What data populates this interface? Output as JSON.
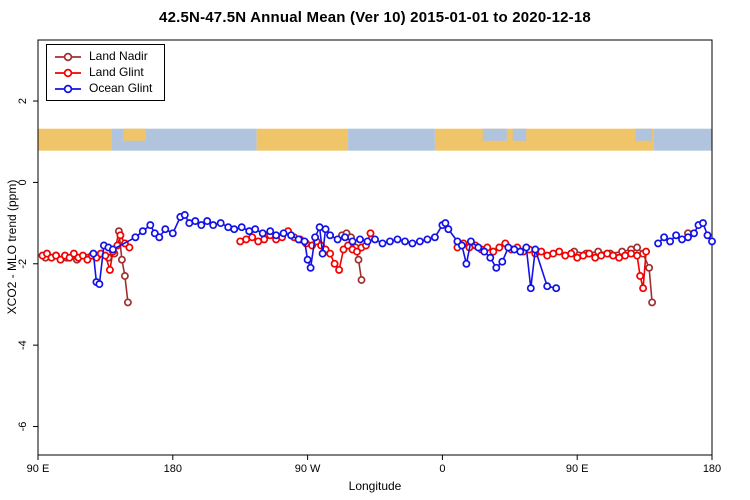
{
  "chart_data": {
    "type": "line",
    "title": "42.5N-47.5N Annual Mean (Ver 10)   2015-01-01 to 2020-12-18",
    "xlabel": "Longitude",
    "ylabel": "XCO2 - MLO trend (ppm)",
    "x_unit_note": "x is degrees along wrapped longitude axis: 0=90E, 90=180, 180=90W, 270=0, 360=90E, 450=180",
    "xlim": [
      0,
      450
    ],
    "ylim": [
      -6.7,
      3.5
    ],
    "grid": false,
    "legend_position": "top-left",
    "x_ticks": [
      {
        "pos": 0,
        "label": "90 E"
      },
      {
        "pos": 90,
        "label": "180"
      },
      {
        "pos": 180,
        "label": "90 W"
      },
      {
        "pos": 270,
        "label": "0"
      },
      {
        "pos": 360,
        "label": "90 E"
      },
      {
        "pos": 450,
        "label": "180"
      }
    ],
    "y_ticks": [
      {
        "pos": 2,
        "label": "2"
      },
      {
        "pos": 0,
        "label": "0"
      },
      {
        "pos": -2,
        "label": "-2"
      },
      {
        "pos": -4,
        "label": "-4"
      },
      {
        "pos": -6,
        "label": "-6"
      }
    ],
    "series": [
      {
        "name": "Land Nadir",
        "color": "#A03030",
        "points": [
          [
            5,
            -1.85
          ],
          [
            12,
            -1.8
          ],
          [
            19,
            -1.85
          ],
          [
            26,
            -1.9
          ],
          [
            33,
            -1.85
          ],
          [
            40,
            -1.8
          ],
          [
            47,
            -1.85
          ],
          [
            51,
            -1.75
          ],
          [
            54,
            -1.2
          ],
          [
            56,
            -1.9
          ],
          [
            58,
            -2.3
          ],
          [
            60,
            -2.95
          ],
          [
            203,
            -1.3
          ],
          [
            206,
            -1.25
          ],
          [
            209,
            -1.35
          ],
          [
            212,
            -1.6
          ],
          [
            214,
            -1.9
          ],
          [
            216,
            -2.4
          ],
          [
            358,
            -1.7
          ],
          [
            366,
            -1.75
          ],
          [
            374,
            -1.7
          ],
          [
            382,
            -1.75
          ],
          [
            390,
            -1.7
          ],
          [
            396,
            -1.65
          ],
          [
            400,
            -1.6
          ],
          [
            404,
            -1.75
          ],
          [
            408,
            -2.1
          ],
          [
            410,
            -2.95
          ],
          [
            434,
            -1.25
          ]
        ]
      },
      {
        "name": "Land Glint",
        "color": "#F40000",
        "points": [
          [
            3,
            -1.8
          ],
          [
            6,
            -1.75
          ],
          [
            9,
            -1.85
          ],
          [
            12,
            -1.8
          ],
          [
            15,
            -1.9
          ],
          [
            18,
            -1.8
          ],
          [
            21,
            -1.85
          ],
          [
            24,
            -1.75
          ],
          [
            27,
            -1.85
          ],
          [
            30,
            -1.8
          ],
          [
            33,
            -1.9
          ],
          [
            36,
            -1.8
          ],
          [
            39,
            -1.85
          ],
          [
            42,
            -1.75
          ],
          [
            45,
            -1.8
          ],
          [
            48,
            -2.15
          ],
          [
            50,
            -1.7
          ],
          [
            53,
            -1.55
          ],
          [
            55,
            -1.3
          ],
          [
            58,
            -1.5
          ],
          [
            61,
            -1.6
          ],
          [
            135,
            -1.45
          ],
          [
            139,
            -1.4
          ],
          [
            143,
            -1.35
          ],
          [
            147,
            -1.45
          ],
          [
            151,
            -1.4
          ],
          [
            155,
            -1.3
          ],
          [
            159,
            -1.4
          ],
          [
            163,
            -1.35
          ],
          [
            167,
            -1.2
          ],
          [
            171,
            -1.35
          ],
          [
            175,
            -1.4
          ],
          [
            179,
            -1.5
          ],
          [
            183,
            -1.55
          ],
          [
            186,
            -1.45
          ],
          [
            189,
            -1.55
          ],
          [
            192,
            -1.65
          ],
          [
            195,
            -1.75
          ],
          [
            198,
            -2.0
          ],
          [
            201,
            -2.15
          ],
          [
            204,
            -1.65
          ],
          [
            207,
            -1.55
          ],
          [
            210,
            -1.65
          ],
          [
            213,
            -1.7
          ],
          [
            216,
            -1.6
          ],
          [
            219,
            -1.55
          ],
          [
            222,
            -1.25
          ],
          [
            280,
            -1.6
          ],
          [
            284,
            -1.5
          ],
          [
            288,
            -1.6
          ],
          [
            292,
            -1.55
          ],
          [
            296,
            -1.65
          ],
          [
            300,
            -1.6
          ],
          [
            304,
            -1.7
          ],
          [
            308,
            -1.6
          ],
          [
            312,
            -1.5
          ],
          [
            316,
            -1.65
          ],
          [
            320,
            -1.6
          ],
          [
            324,
            -1.7
          ],
          [
            328,
            -1.65
          ],
          [
            332,
            -1.75
          ],
          [
            336,
            -1.7
          ],
          [
            340,
            -1.8
          ],
          [
            344,
            -1.75
          ],
          [
            348,
            -1.7
          ],
          [
            352,
            -1.8
          ],
          [
            356,
            -1.75
          ],
          [
            360,
            -1.85
          ],
          [
            364,
            -1.8
          ],
          [
            368,
            -1.75
          ],
          [
            372,
            -1.85
          ],
          [
            376,
            -1.8
          ],
          [
            380,
            -1.75
          ],
          [
            384,
            -1.8
          ],
          [
            388,
            -1.85
          ],
          [
            392,
            -1.8
          ],
          [
            396,
            -1.75
          ],
          [
            400,
            -1.8
          ],
          [
            402,
            -2.3
          ],
          [
            404,
            -2.6
          ],
          [
            406,
            -1.7
          ]
        ]
      },
      {
        "name": "Ocean Glint",
        "color": "#1212E8",
        "points": [
          [
            37,
            -1.75
          ],
          [
            39,
            -2.45
          ],
          [
            41,
            -2.5
          ],
          [
            44,
            -1.55
          ],
          [
            47,
            -1.6
          ],
          [
            50,
            -1.65
          ],
          [
            65,
            -1.35
          ],
          [
            70,
            -1.2
          ],
          [
            75,
            -1.05
          ],
          [
            78,
            -1.25
          ],
          [
            81,
            -1.35
          ],
          [
            85,
            -1.15
          ],
          [
            90,
            -1.25
          ],
          [
            95,
            -0.85
          ],
          [
            98,
            -0.8
          ],
          [
            101,
            -1.0
          ],
          [
            105,
            -0.95
          ],
          [
            109,
            -1.05
          ],
          [
            113,
            -0.95
          ],
          [
            117,
            -1.05
          ],
          [
            122,
            -1.0
          ],
          [
            127,
            -1.1
          ],
          [
            131,
            -1.15
          ],
          [
            136,
            -1.1
          ],
          [
            141,
            -1.2
          ],
          [
            145,
            -1.15
          ],
          [
            150,
            -1.25
          ],
          [
            155,
            -1.2
          ],
          [
            159,
            -1.3
          ],
          [
            164,
            -1.25
          ],
          [
            169,
            -1.3
          ],
          [
            174,
            -1.4
          ],
          [
            178,
            -1.45
          ],
          [
            180,
            -1.9
          ],
          [
            182,
            -2.1
          ],
          [
            185,
            -1.35
          ],
          [
            188,
            -1.1
          ],
          [
            190,
            -1.75
          ],
          [
            192,
            -1.15
          ],
          [
            195,
            -1.3
          ],
          [
            200,
            -1.4
          ],
          [
            205,
            -1.35
          ],
          [
            210,
            -1.45
          ],
          [
            215,
            -1.4
          ],
          [
            220,
            -1.45
          ],
          [
            225,
            -1.4
          ],
          [
            230,
            -1.5
          ],
          [
            235,
            -1.45
          ],
          [
            240,
            -1.4
          ],
          [
            245,
            -1.45
          ],
          [
            250,
            -1.5
          ],
          [
            255,
            -1.45
          ],
          [
            260,
            -1.4
          ],
          [
            265,
            -1.35
          ],
          [
            270,
            -1.05
          ],
          [
            272,
            -1.0
          ],
          [
            274,
            -1.15
          ],
          [
            280,
            -1.45
          ],
          [
            283,
            -1.55
          ],
          [
            286,
            -2.0
          ],
          [
            289,
            -1.45
          ],
          [
            294,
            -1.6
          ],
          [
            298,
            -1.7
          ],
          [
            302,
            -1.85
          ],
          [
            306,
            -2.1
          ],
          [
            310,
            -1.95
          ],
          [
            314,
            -1.6
          ],
          [
            318,
            -1.65
          ],
          [
            322,
            -1.7
          ],
          [
            326,
            -1.6
          ],
          [
            329,
            -2.6
          ],
          [
            332,
            -1.65
          ],
          [
            340,
            -2.55
          ],
          [
            346,
            -2.6
          ],
          [
            414,
            -1.5
          ],
          [
            418,
            -1.35
          ],
          [
            422,
            -1.45
          ],
          [
            426,
            -1.3
          ],
          [
            430,
            -1.4
          ],
          [
            434,
            -1.35
          ],
          [
            438,
            -1.25
          ],
          [
            441,
            -1.05
          ],
          [
            444,
            -1.0
          ],
          [
            447,
            -1.3
          ],
          [
            450,
            -1.45
          ]
        ]
      }
    ]
  },
  "map_strip": {
    "land_color": "#F0C468",
    "ocean_color": "#B0C4DE",
    "value_band": [
      0.78,
      1.32
    ],
    "segments": [
      [
        0,
        49,
        "land"
      ],
      [
        49,
        146,
        "ocean"
      ],
      [
        146,
        207,
        "land"
      ],
      [
        207,
        265,
        "ocean"
      ],
      [
        265,
        411,
        "land"
      ],
      [
        411,
        450,
        "ocean"
      ]
    ],
    "patches": [
      [
        57,
        72,
        "land"
      ],
      [
        297,
        313,
        "ocean"
      ],
      [
        317,
        326,
        "ocean"
      ],
      [
        399,
        410,
        "ocean"
      ]
    ]
  }
}
